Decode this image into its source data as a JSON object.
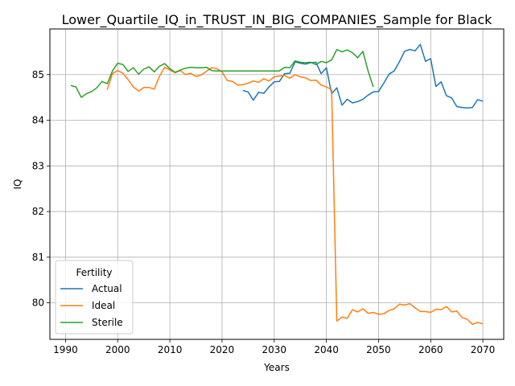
{
  "chart_data": {
    "type": "line",
    "title": "Lower_Quartile_IQ_in_TRUST_IN_BIG_COMPANIES_Sample for Black",
    "xlabel": "Years",
    "ylabel": "IQ",
    "xlim": [
      1987,
      2074
    ],
    "ylim": [
      79.2,
      86.0
    ],
    "xticks": [
      1990,
      2000,
      2010,
      2020,
      2030,
      2040,
      2050,
      2060,
      2070
    ],
    "yticks": [
      80,
      81,
      82,
      83,
      84,
      85
    ],
    "grid": true,
    "legend": {
      "title": "Fertility",
      "position": "lower-left"
    },
    "series": [
      {
        "name": "Actual",
        "color": "#1f77b4",
        "points": [
          [
            2024,
            84.65
          ],
          [
            2025,
            84.62
          ],
          [
            2026,
            84.44
          ],
          [
            2027,
            84.61
          ],
          [
            2028,
            84.59
          ],
          [
            2029,
            84.73
          ],
          [
            2030,
            84.84
          ],
          [
            2031,
            84.85
          ],
          [
            2032,
            85.02
          ],
          [
            2033,
            85.03
          ],
          [
            2034,
            85.28
          ],
          [
            2035,
            85.25
          ],
          [
            2036,
            85.23
          ],
          [
            2037,
            85.26
          ],
          [
            2038,
            85.27
          ],
          [
            2039,
            85.02
          ],
          [
            2040,
            85.15
          ],
          [
            2041,
            84.58
          ],
          [
            2042,
            84.71
          ],
          [
            2043,
            84.33
          ],
          [
            2044,
            84.46
          ],
          [
            2045,
            84.38
          ],
          [
            2046,
            84.41
          ],
          [
            2047,
            84.46
          ],
          [
            2048,
            84.55
          ],
          [
            2049,
            84.62
          ],
          [
            2050,
            84.63
          ],
          [
            2051,
            84.81
          ],
          [
            2052,
            85.01
          ],
          [
            2053,
            85.08
          ],
          [
            2054,
            85.28
          ],
          [
            2055,
            85.51
          ],
          [
            2056,
            85.55
          ],
          [
            2057,
            85.52
          ],
          [
            2058,
            85.66
          ],
          [
            2059,
            85.29
          ],
          [
            2060,
            85.35
          ],
          [
            2061,
            84.74
          ],
          [
            2062,
            84.84
          ],
          [
            2063,
            84.54
          ],
          [
            2064,
            84.49
          ],
          [
            2065,
            84.3
          ],
          [
            2066,
            84.28
          ],
          [
            2067,
            84.27
          ],
          [
            2068,
            84.28
          ],
          [
            2069,
            84.45
          ],
          [
            2070,
            84.42
          ]
        ]
      },
      {
        "name": "Ideal",
        "color": "#ff7f0e",
        "points": [
          [
            1998,
            84.67
          ],
          [
            1999,
            85.02
          ],
          [
            2000,
            85.09
          ],
          [
            2001,
            85.03
          ],
          [
            2002,
            84.89
          ],
          [
            2003,
            84.73
          ],
          [
            2004,
            84.64
          ],
          [
            2005,
            84.72
          ],
          [
            2006,
            84.72
          ],
          [
            2007,
            84.68
          ],
          [
            2008,
            84.96
          ],
          [
            2009,
            85.16
          ],
          [
            2010,
            85.1
          ],
          [
            2011,
            85.04
          ],
          [
            2012,
            85.09
          ],
          [
            2013,
            85.0
          ],
          [
            2014,
            85.03
          ],
          [
            2015,
            84.96
          ],
          [
            2016,
            84.99
          ],
          [
            2017,
            85.07
          ],
          [
            2018,
            85.15
          ],
          [
            2019,
            85.13
          ],
          [
            2020,
            85.06
          ],
          [
            2021,
            84.87
          ],
          [
            2022,
            84.85
          ],
          [
            2023,
            84.77
          ],
          [
            2024,
            84.78
          ],
          [
            2025,
            84.81
          ],
          [
            2026,
            84.86
          ],
          [
            2027,
            84.83
          ],
          [
            2028,
            84.91
          ],
          [
            2029,
            84.86
          ],
          [
            2030,
            84.95
          ],
          [
            2031,
            84.97
          ],
          [
            2032,
            84.98
          ],
          [
            2033,
            84.92
          ],
          [
            2034,
            85.0
          ],
          [
            2035,
            84.95
          ],
          [
            2036,
            84.93
          ],
          [
            2037,
            84.87
          ],
          [
            2038,
            84.88
          ],
          [
            2039,
            84.77
          ],
          [
            2040,
            84.73
          ],
          [
            2041,
            84.67
          ],
          [
            2042,
            79.6
          ],
          [
            2043,
            79.69
          ],
          [
            2044,
            79.66
          ],
          [
            2045,
            79.85
          ],
          [
            2046,
            79.8
          ],
          [
            2047,
            79.87
          ],
          [
            2048,
            79.77
          ],
          [
            2049,
            79.79
          ],
          [
            2050,
            79.75
          ],
          [
            2051,
            79.76
          ],
          [
            2052,
            79.83
          ],
          [
            2053,
            79.87
          ],
          [
            2054,
            79.97
          ],
          [
            2055,
            79.95
          ],
          [
            2056,
            79.98
          ],
          [
            2057,
            79.89
          ],
          [
            2058,
            79.81
          ],
          [
            2059,
            79.81
          ],
          [
            2060,
            79.79
          ],
          [
            2061,
            79.86
          ],
          [
            2062,
            79.85
          ],
          [
            2063,
            79.92
          ],
          [
            2064,
            79.8
          ],
          [
            2065,
            79.82
          ],
          [
            2066,
            79.68
          ],
          [
            2067,
            79.64
          ],
          [
            2068,
            79.53
          ],
          [
            2069,
            79.57
          ],
          [
            2070,
            79.54
          ]
        ]
      },
      {
        "name": "Sterile",
        "color": "#2ca02c",
        "points": [
          [
            1991,
            84.76
          ],
          [
            1992,
            84.73
          ],
          [
            1993,
            84.5
          ],
          [
            1994,
            84.58
          ],
          [
            1995,
            84.63
          ],
          [
            1996,
            84.71
          ],
          [
            1997,
            84.85
          ],
          [
            1998,
            84.8
          ],
          [
            1999,
            85.08
          ],
          [
            2000,
            85.25
          ],
          [
            2001,
            85.22
          ],
          [
            2002,
            85.07
          ],
          [
            2003,
            85.15
          ],
          [
            2004,
            85.01
          ],
          [
            2005,
            85.12
          ],
          [
            2006,
            85.17
          ],
          [
            2007,
            85.06
          ],
          [
            2008,
            85.18
          ],
          [
            2009,
            85.24
          ],
          [
            2010,
            85.13
          ],
          [
            2011,
            85.05
          ],
          [
            2012,
            85.1
          ],
          [
            2013,
            85.14
          ],
          [
            2014,
            85.16
          ],
          [
            2015,
            85.15
          ],
          [
            2016,
            85.15
          ],
          [
            2017,
            85.16
          ],
          [
            2018,
            85.09
          ],
          [
            2019,
            85.08
          ],
          [
            2020,
            85.08
          ],
          [
            2021,
            85.08
          ],
          [
            2022,
            85.08
          ],
          [
            2023,
            85.08
          ],
          [
            2024,
            85.08
          ],
          [
            2025,
            85.08
          ],
          [
            2026,
            85.08
          ],
          [
            2027,
            85.08
          ],
          [
            2028,
            85.08
          ],
          [
            2029,
            85.08
          ],
          [
            2030,
            85.08
          ],
          [
            2031,
            85.08
          ],
          [
            2032,
            85.16
          ],
          [
            2033,
            85.15
          ],
          [
            2034,
            85.3
          ],
          [
            2035,
            85.27
          ],
          [
            2036,
            85.26
          ],
          [
            2037,
            85.27
          ],
          [
            2038,
            85.22
          ],
          [
            2039,
            85.29
          ],
          [
            2040,
            85.26
          ],
          [
            2041,
            85.32
          ],
          [
            2042,
            85.55
          ],
          [
            2043,
            85.5
          ],
          [
            2044,
            85.54
          ],
          [
            2045,
            85.48
          ],
          [
            2046,
            85.37
          ],
          [
            2047,
            85.51
          ],
          [
            2048,
            85.08
          ],
          [
            2049,
            84.73
          ]
        ]
      }
    ]
  }
}
